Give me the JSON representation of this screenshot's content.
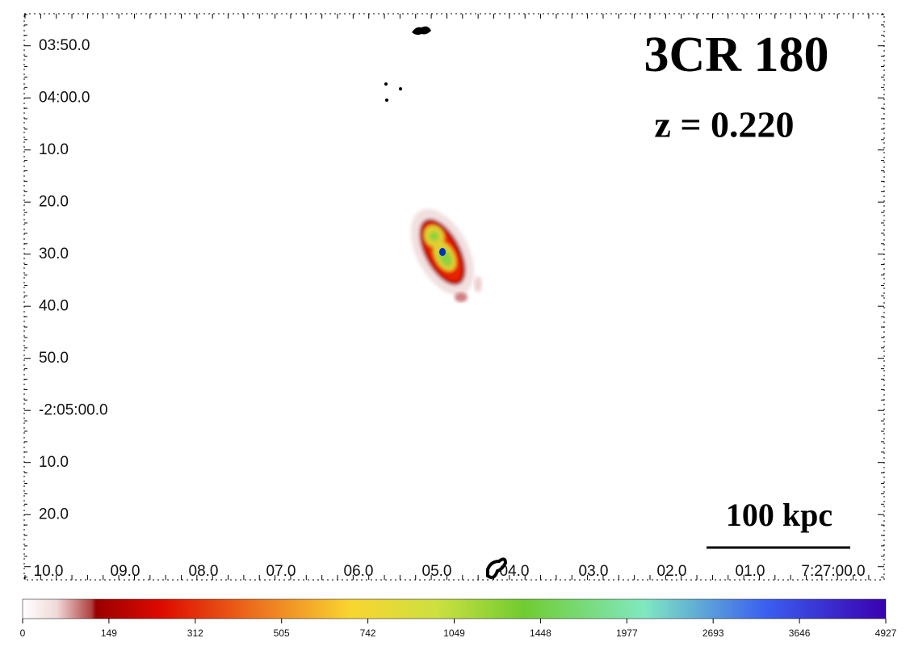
{
  "title": "3CR 180",
  "redshift": "z = 0.220",
  "scale_bar": "100 kpc",
  "dec_labels": [
    "03:50.0",
    "04:00.0",
    "10.0",
    "20.0",
    "30.0",
    "40.0",
    "50.0",
    "-2:05:00.0",
    "10.0",
    "20.0"
  ],
  "ra_labels": [
    "10.0",
    "09.0",
    "08.0",
    "07.0",
    "06.0",
    "05.0",
    "04.0",
    "03.0",
    "02.0",
    "01.0",
    "7:27:00.0"
  ],
  "colorbar_labels": [
    0,
    149,
    312,
    505,
    742,
    1049,
    1448,
    1977,
    2693,
    3646,
    4927
  ]
}
